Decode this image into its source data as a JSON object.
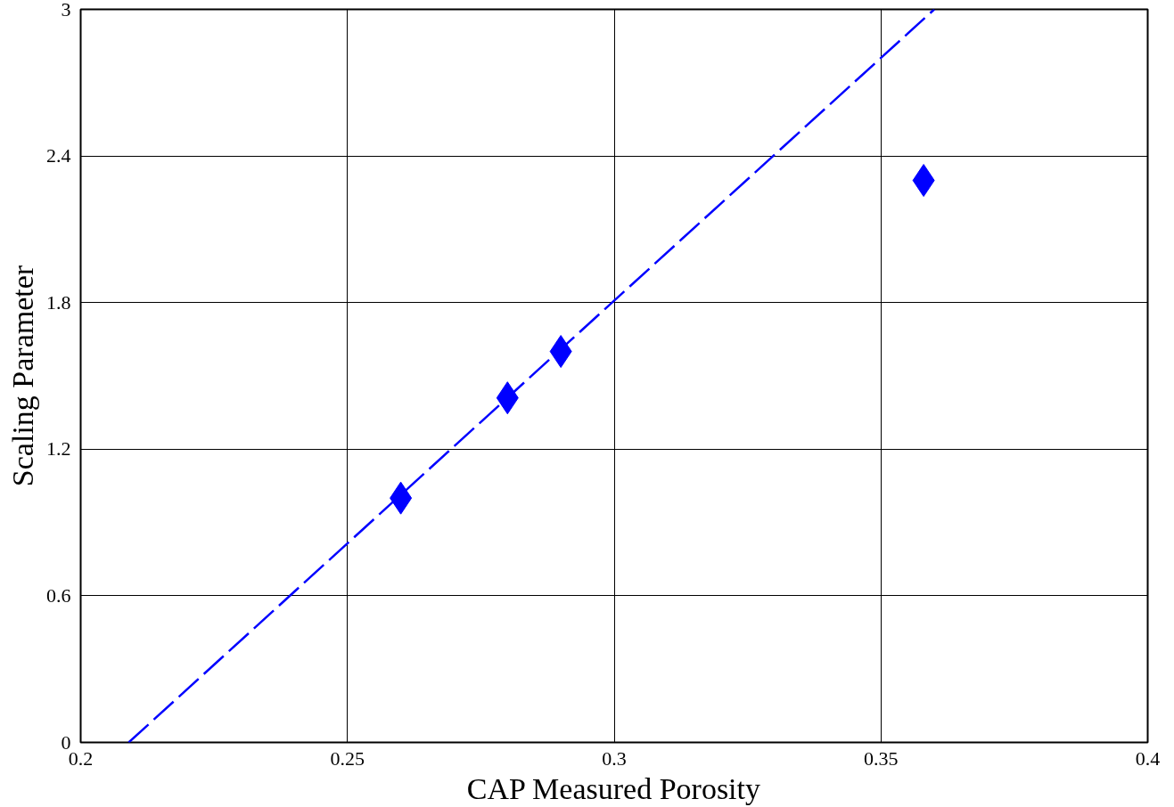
{
  "chart_data": {
    "type": "scatter",
    "xlabel": "CAP Measured Porosity",
    "ylabel": "Scaling Parameter",
    "xlim": [
      0.2,
      0.4
    ],
    "ylim": [
      0,
      3
    ],
    "xticks": [
      0.2,
      0.25,
      0.3,
      0.35,
      0.4
    ],
    "yticks": [
      0,
      0.6,
      1.2,
      1.8,
      2.4,
      3
    ],
    "grid": true,
    "series": [
      {
        "color": "#0000ff",
        "marker": "diamond",
        "x": [
          0.26,
          0.28,
          0.29,
          0.358
        ],
        "values": [
          1.0,
          1.41,
          1.6,
          2.3
        ]
      },
      {
        "type": "line",
        "color": "#0000ff",
        "line_style": "dashed",
        "marker": "none",
        "x": [
          0.209,
          0.36
        ],
        "values": [
          0,
          3
        ]
      }
    ]
  }
}
